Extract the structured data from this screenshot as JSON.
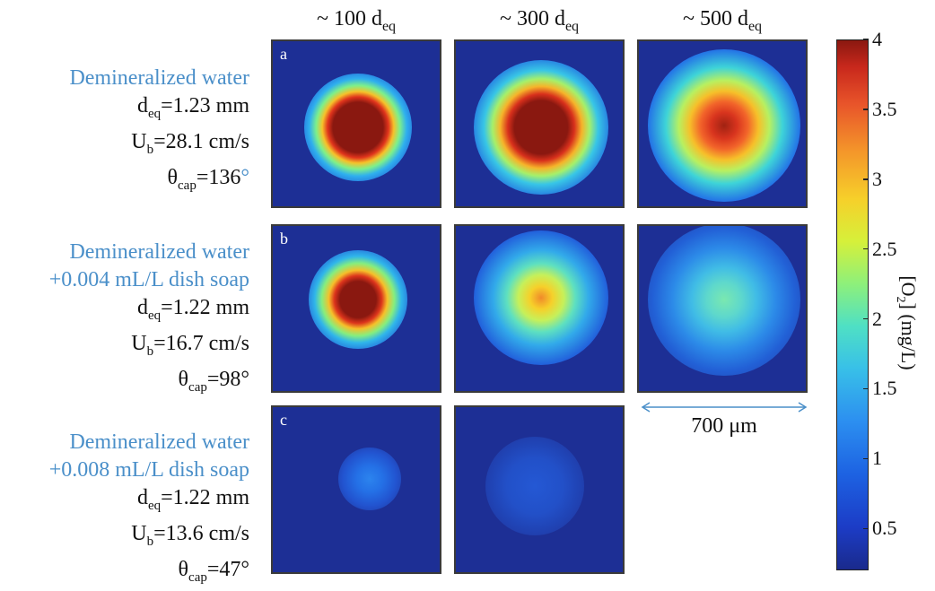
{
  "columns": [
    {
      "prefix": "~ 100 d",
      "sub": "eq"
    },
    {
      "prefix": "~ 300 d",
      "sub": "eq"
    },
    {
      "prefix": "~ 500 d",
      "sub": "eq"
    }
  ],
  "rows": [
    {
      "letter": "a",
      "title_lines": [
        "Demineralized water"
      ],
      "deq": {
        "symbol": "d",
        "sub": "eq",
        "value": "=1.23 mm"
      },
      "ub": {
        "symbol": "U",
        "sub": "b",
        "value": "=28.1 cm/s"
      },
      "theta": {
        "symbol": "θ",
        "sub": "cap",
        "value": "=136",
        "unit": "°"
      }
    },
    {
      "letter": "b",
      "title_lines": [
        "Demineralized water",
        "+0.004 mL/L dish soap"
      ],
      "deq": {
        "symbol": "d",
        "sub": "eq",
        "value": "=1.22 mm"
      },
      "ub": {
        "symbol": "U",
        "sub": "b",
        "value": "=16.7 cm/s"
      },
      "theta": {
        "symbol": "θ",
        "sub": "cap",
        "value": "=98°"
      }
    },
    {
      "letter": "c",
      "title_lines": [
        "Demineralized water",
        "+0.008 mL/L dish soap"
      ],
      "deq": {
        "symbol": "d",
        "sub": "eq",
        "value": "=1.22 mm"
      },
      "ub": {
        "symbol": "U",
        "sub": "b",
        "value": "=13.6 cm/s"
      },
      "theta": {
        "symbol": "θ",
        "sub": "cap",
        "value": "=47°"
      }
    }
  ],
  "scale_bar": {
    "label": "700 μm"
  },
  "colorbar": {
    "title_prefix": "[O",
    "title_sub": "2",
    "title_suffix": "] (mg/L)",
    "ticks": [
      "4",
      "3.5",
      "3",
      "2.5",
      "2",
      "1.5",
      "1",
      "0.5"
    ],
    "range": [
      0.2,
      4
    ]
  },
  "colors": {
    "label_blue": "#4a8fc9",
    "background_blue": "#1d2f95"
  }
}
